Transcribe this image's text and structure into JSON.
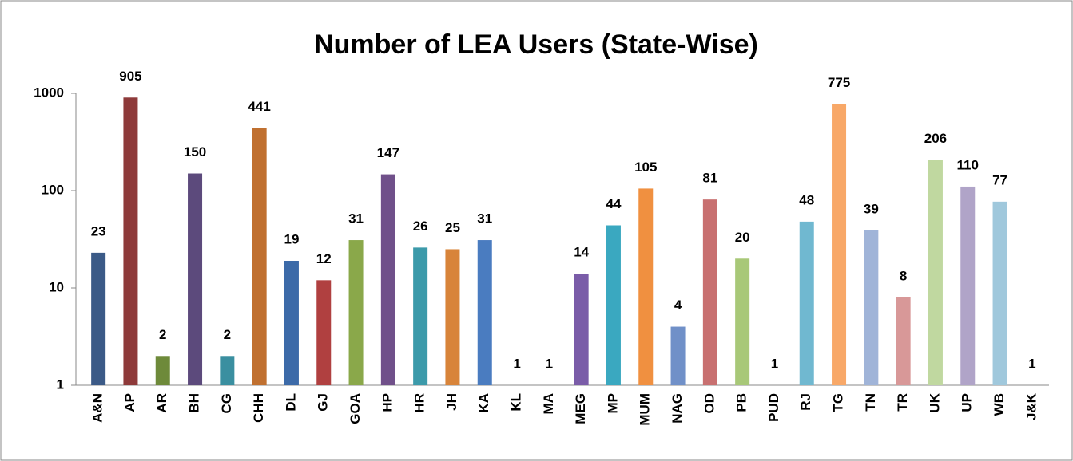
{
  "chart_data": {
    "type": "bar",
    "title": "Number of LEA Users (State-Wise)",
    "categories": [
      "A&N",
      "AP",
      "AR",
      "BH",
      "CG",
      "CHH",
      "DL",
      "GJ",
      "GOA",
      "HP",
      "HR",
      "JH",
      "KA",
      "KL",
      "MA",
      "MEG",
      "MP",
      "MUM",
      "NAG",
      "OD",
      "PB",
      "PUD",
      "RJ",
      "TG",
      "TN",
      "TR",
      "UK",
      "UP",
      "WB",
      "J&K"
    ],
    "values": [
      23,
      905,
      2,
      150,
      2,
      441,
      19,
      12,
      31,
      147,
      26,
      25,
      31,
      1,
      1,
      14,
      44,
      105,
      4,
      81,
      20,
      1,
      48,
      775,
      39,
      8,
      206,
      110,
      77,
      1
    ],
    "colors": [
      "#3b5a87",
      "#8e3a3a",
      "#6e8a3a",
      "#5c4a7c",
      "#3a8fa0",
      "#c07030",
      "#3c6aa8",
      "#b04040",
      "#8aa84a",
      "#70508a",
      "#3c9aaa",
      "#d8843a",
      "#4a7cc0",
      "#4a7cc0",
      "#4a7cc0",
      "#7a5ca8",
      "#3aa8c0",
      "#f09040",
      "#7090c8",
      "#c87070",
      "#a8c878",
      "#a8c878",
      "#70b8d0",
      "#f8a868",
      "#a0b4d8",
      "#d89898",
      "#c0d8a0",
      "#b0a4c8",
      "#a0c8dc",
      "#a0c8dc"
    ],
    "log_scale": true,
    "ylim": [
      1,
      1000
    ],
    "yticks": [
      1,
      10,
      100,
      1000
    ],
    "grid": false
  }
}
